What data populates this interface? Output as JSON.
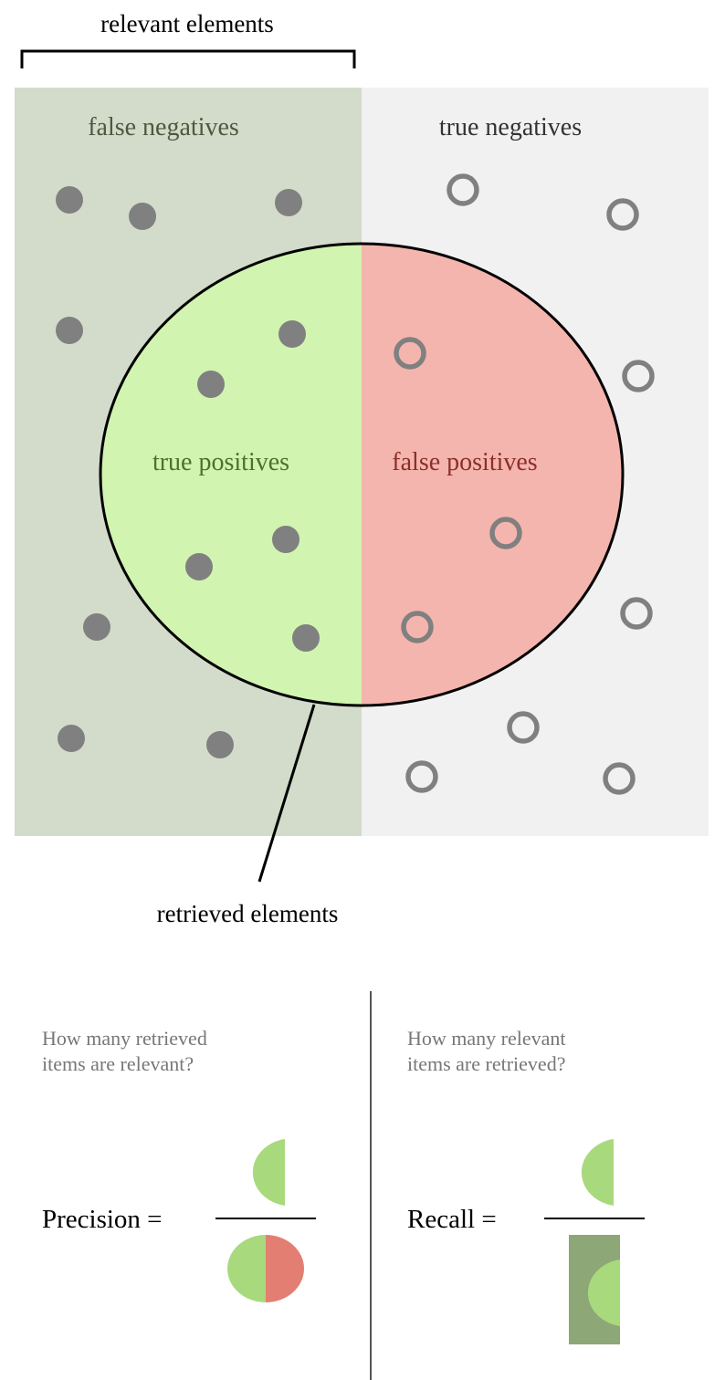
{
  "labels": {
    "relevant_elements": "relevant elements",
    "false_negatives": "false negatives",
    "true_negatives": "true negatives",
    "true_positives": "true positives",
    "false_positives": "false positives",
    "retrieved_elements": "retrieved elements"
  },
  "precision": {
    "question_line1": "How many retrieved",
    "question_line2": "items are relevant?",
    "formula_label": "Precision ="
  },
  "recall": {
    "question_line1": "How many relevant",
    "question_line2": "items are retrieved?",
    "formula_label": "Recall ="
  },
  "colors": {
    "relevant_bg": "#d3dcca",
    "irrelevant_bg": "#f1f1f1",
    "true_positive": "#d1f4b0",
    "false_positive": "#f4b5ae",
    "dot": "#808080",
    "fn_text": "#4b5a3f",
    "tp_text": "#4f6f2f",
    "fp_text": "#8b2f2a",
    "formula_green": "#a9d97d",
    "formula_red": "#e37e72",
    "formula_dark_green": "#8da776"
  }
}
